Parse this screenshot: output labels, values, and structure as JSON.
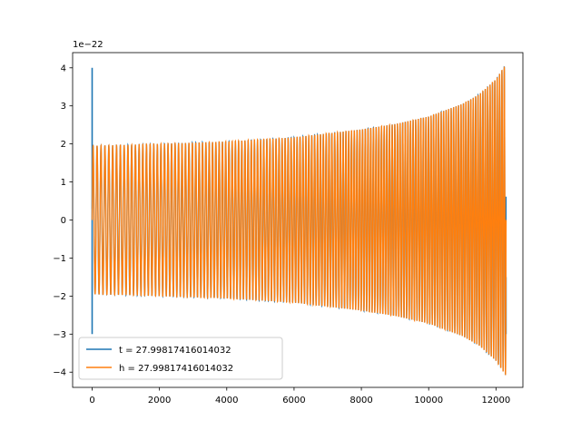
{
  "chart_data": {
    "type": "line",
    "title": "",
    "xlabel": "",
    "ylabel": "",
    "y_offset_label": "1e−22",
    "xlim": [
      -580,
      12800
    ],
    "ylim": [
      -4.4,
      4.4
    ],
    "x_ticks": [
      0,
      2000,
      4000,
      6000,
      8000,
      10000,
      12000
    ],
    "x_tick_labels": [
      "0",
      "2000",
      "4000",
      "6000",
      "8000",
      "10000",
      "12000"
    ],
    "y_ticks": [
      -4,
      -3,
      -2,
      -1,
      0,
      1,
      2,
      3,
      4
    ],
    "y_tick_labels": [
      "−4",
      "−3",
      "−2",
      "−1",
      "0",
      "1",
      "2",
      "3",
      "4"
    ],
    "grid": false,
    "legend_position": "lower-left",
    "series": [
      {
        "name": "t = 27.99817416014032",
        "color": "#1f77b4",
        "description_points": {
          "x": [
            0,
            0,
            20,
            12300
          ],
          "y": [
            4.0,
            -3.0,
            0,
            -3.0
          ]
        }
      },
      {
        "name": "h = 27.99817416014032",
        "color": "#ff7f0e",
        "envelope": {
          "x": [
            0,
            1000,
            2000,
            4000,
            6000,
            8000,
            9000,
            10000,
            11000,
            11500,
            12000,
            12300
          ],
          "amplitude": [
            1.95,
            1.97,
            2.0,
            2.06,
            2.17,
            2.38,
            2.52,
            2.72,
            3.05,
            3.3,
            3.7,
            4.1
          ]
        },
        "cycles": 140,
        "x_start": 0,
        "x_end": 12300
      }
    ]
  }
}
